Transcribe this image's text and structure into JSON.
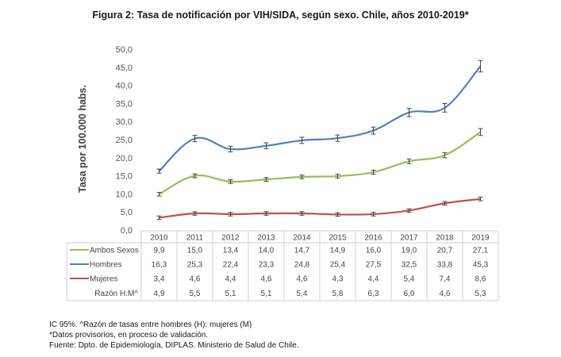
{
  "chart_data": {
    "type": "line",
    "title": "Figura 2: Tasa de notificación por VIH/SIDA, según sexo. Chile, años 2010-2019*",
    "xlabel": "",
    "ylabel": "Tasa por 100.000 habs.",
    "ylim": [
      0,
      50
    ],
    "yticks": [
      "0,0",
      "5,0",
      "10,0",
      "15,0",
      "20,0",
      "25,0",
      "30,0",
      "35,0",
      "40,0",
      "45,0",
      "50,0"
    ],
    "ytick_values": [
      0,
      5,
      10,
      15,
      20,
      25,
      30,
      35,
      40,
      45,
      50
    ],
    "categories": [
      "2010",
      "2011",
      "2012",
      "2013",
      "2014",
      "2015",
      "2016",
      "2017",
      "2018",
      "2019"
    ],
    "grid": false,
    "error_bars": true,
    "legend": "data-table-left",
    "series": [
      {
        "name": "Ambos Sexos",
        "color": "#9bbb59",
        "values": [
          9.9,
          15.0,
          13.4,
          14.0,
          14.7,
          14.9,
          16.0,
          19.0,
          20.7,
          27.1
        ],
        "labels": [
          "9,9",
          "15,0",
          "13,4",
          "14,0",
          "14,7",
          "14,9",
          "16,0",
          "19,0",
          "20,7",
          "27,1"
        ]
      },
      {
        "name": "Hombres",
        "color": "#4f81bd",
        "values": [
          16.3,
          25.3,
          22.4,
          23.3,
          24.8,
          25.4,
          27.5,
          32.5,
          33.8,
          45.3
        ],
        "labels": [
          "16,3",
          "25,3",
          "22,4",
          "23,3",
          "24,8",
          "25,4",
          "27,5",
          "32,5",
          "33,8",
          "45,3"
        ]
      },
      {
        "name": "Mujeres",
        "color": "#c0504d",
        "values": [
          3.4,
          4.6,
          4.4,
          4.6,
          4.6,
          4.3,
          4.4,
          5.4,
          7.4,
          8.6
        ],
        "labels": [
          "3,4",
          "4,6",
          "4,4",
          "4,6",
          "4,6",
          "4,3",
          "4,4",
          "5,4",
          "7,4",
          "8,6"
        ]
      }
    ],
    "table_extra_rows": [
      {
        "name": "Razón H:M^",
        "values": [
          4.9,
          5.5,
          5.1,
          5.1,
          5.4,
          5.8,
          6.3,
          6.0,
          4.6,
          5.3
        ],
        "labels": [
          "4,9",
          "5,5",
          "5,1",
          "5,1",
          "5,4",
          "5,8",
          "6,3",
          "6,0",
          "4,6",
          "5,3"
        ]
      }
    ]
  },
  "notes": [
    "IC 95%. ^Razón de tasas entre hombres (H): mujeres (M)",
    "*Datos provisorios, en proceso de validación.",
    "Fuente: Dpto. de Epidemiología, DIPLAS. Ministerio de Salud de Chile."
  ]
}
